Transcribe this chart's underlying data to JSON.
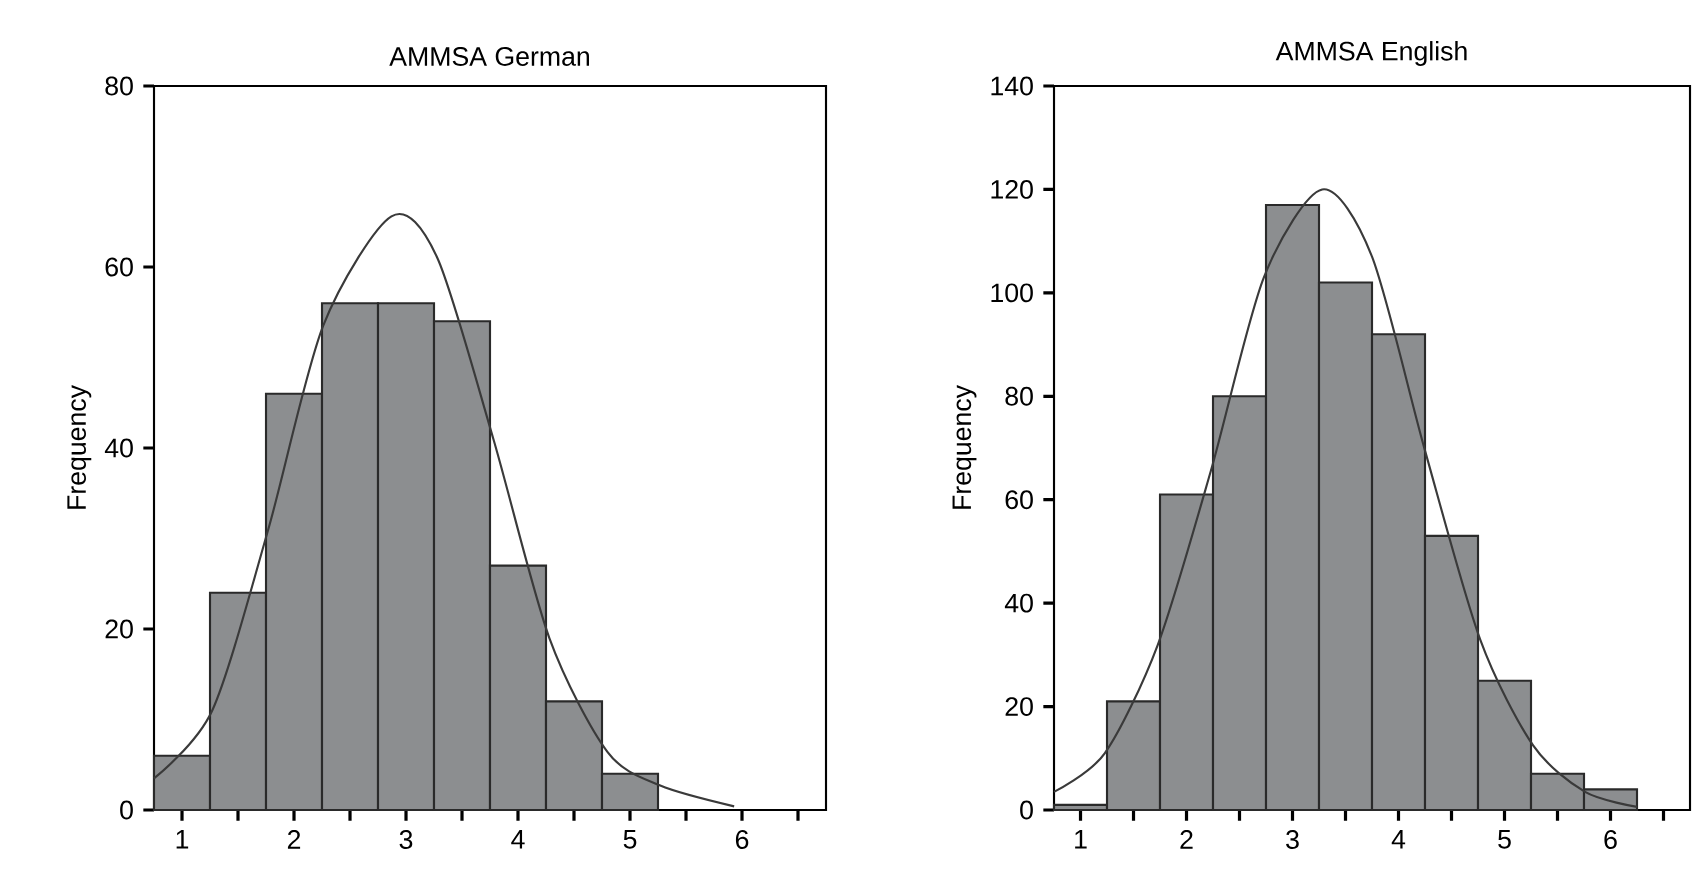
{
  "chart_data": [
    {
      "type": "histogram",
      "title": "AMMSA German",
      "ylabel": "Frequency",
      "color": "#8c8e90",
      "bins": [
        0.75,
        1.25,
        1.75,
        2.25,
        2.75,
        3.25,
        3.75,
        4.25,
        4.75,
        5.25
      ],
      "values": [
        6,
        24,
        46,
        56,
        56,
        54,
        27,
        12,
        4
      ],
      "xlim": [
        0.75,
        6.75
      ],
      "ylim": [
        0,
        80
      ],
      "yticks": [
        0,
        20,
        40,
        60,
        80
      ],
      "xticks": [
        1,
        {
          "value": 1.5,
          "label": null
        },
        2,
        {
          "value": 2.5,
          "label": null
        },
        3,
        {
          "value": 3.5,
          "label": null
        },
        4,
        {
          "value": 4.5,
          "label": null
        },
        5,
        {
          "value": 5.5,
          "label": null
        },
        6,
        {
          "value": 6.5,
          "label": null
        }
      ],
      "series": [
        {
          "type": "line",
          "color": "#3a3a3a",
          "x": [
            0.75,
            1.27,
            1.77,
            2.26,
            2.87,
            3.28,
            3.78,
            4.28,
            4.8,
            5.27,
            5.93
          ],
          "values": [
            3.5,
            11,
            31,
            53.5,
            65.6,
            61,
            41,
            19,
            6.4,
            2.7,
            0.4
          ]
        }
      ]
    },
    {
      "type": "histogram",
      "title": "AMMSA English",
      "ylabel": "Frequency",
      "color": "#8c8e90",
      "bins": [
        0.75,
        1.25,
        1.75,
        2.25,
        2.75,
        3.25,
        3.75,
        4.25,
        4.75,
        5.25,
        5.75,
        6.25
      ],
      "values": [
        1,
        21,
        61,
        80,
        117,
        102,
        92,
        53,
        25,
        7,
        4
      ],
      "xlim": [
        0.75,
        6.75
      ],
      "ylim": [
        0,
        140
      ],
      "yticks": [
        0,
        20,
        40,
        60,
        80,
        100,
        120,
        140
      ],
      "xticks": [
        1,
        {
          "value": 1.5,
          "label": null
        },
        2,
        {
          "value": 2.5,
          "label": null
        },
        3,
        {
          "value": 3.5,
          "label": null
        },
        4,
        {
          "value": 4.5,
          "label": null
        },
        5,
        {
          "value": 5.5,
          "label": null
        },
        6,
        {
          "value": 6.5,
          "label": null
        }
      ],
      "series": [
        {
          "type": "line",
          "color": "#3a3a3a",
          "x": [
            0.75,
            1.23,
            1.73,
            2.23,
            2.73,
            3.28,
            3.75,
            4.25,
            4.77,
            5.27,
            5.76,
            6.25
          ],
          "values": [
            3.5,
            11,
            32,
            65.6,
            103,
            120,
            107,
            69.5,
            33,
            12.5,
            3.5,
            0.6
          ]
        }
      ]
    }
  ]
}
